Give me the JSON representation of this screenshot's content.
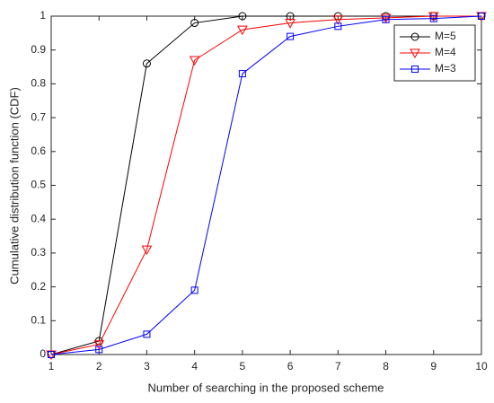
{
  "chart_data": {
    "type": "line",
    "xlabel": "Number of searching in the proposed scheme",
    "ylabel": "Cumulative distribution function (CDF)",
    "x": [
      1,
      2,
      3,
      4,
      5,
      6,
      7,
      8,
      9,
      10
    ],
    "series": [
      {
        "name": "M=5",
        "color": "#000000",
        "marker": "circle",
        "values": [
          0,
          0.04,
          0.86,
          0.98,
          1,
          1,
          1,
          1,
          1,
          1
        ]
      },
      {
        "name": "M=4",
        "color": "#ff0000",
        "marker": "triangle-down",
        "values": [
          0,
          0.03,
          0.31,
          0.87,
          0.96,
          0.98,
          0.99,
          0.995,
          1,
          1
        ]
      },
      {
        "name": "M=3",
        "color": "#0000ff",
        "marker": "square",
        "values": [
          0,
          0.015,
          0.06,
          0.19,
          0.83,
          0.94,
          0.97,
          0.99,
          0.993,
          1
        ]
      }
    ],
    "xlim": [
      1,
      10
    ],
    "xticks": [
      1,
      2,
      3,
      4,
      5,
      6,
      7,
      8,
      9,
      10
    ],
    "ylim": [
      0,
      1
    ],
    "yticks": [
      0,
      0.1,
      0.2,
      0.3,
      0.4,
      0.5,
      0.6,
      0.7,
      0.8,
      0.9,
      1
    ],
    "grid": false,
    "legend": "top-right"
  }
}
